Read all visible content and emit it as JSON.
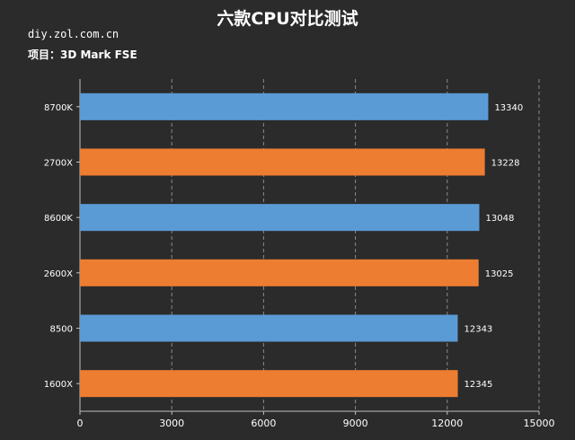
{
  "header": {
    "title": "六款CPU对比测试",
    "site": "diy.zol.com.cn",
    "project": "项目：3D Mark FSE"
  },
  "colors": {
    "background": "#2b2b2b",
    "blue_bar": "#5b9bd5",
    "orange_bar": "#ed7d31",
    "text": "#ffffff",
    "gridline": "#8a8a8a"
  },
  "chart_data": {
    "type": "bar",
    "orientation": "horizontal",
    "title": "六款CPU对比测试",
    "categories": [
      "8700K",
      "2700X",
      "8600K",
      "2600X",
      "8500",
      "1600X"
    ],
    "values": [
      13340,
      13228,
      13048,
      13025,
      12343,
      12345
    ],
    "bar_colors": [
      "#5b9bd5",
      "#ed7d31",
      "#5b9bd5",
      "#ed7d31",
      "#5b9bd5",
      "#ed7d31"
    ],
    "xlim": [
      0,
      15000
    ],
    "xticks": [
      0,
      3000,
      6000,
      9000,
      12000,
      15000
    ],
    "grid": "vertical dashed",
    "legend": "none",
    "data_labels": true
  }
}
